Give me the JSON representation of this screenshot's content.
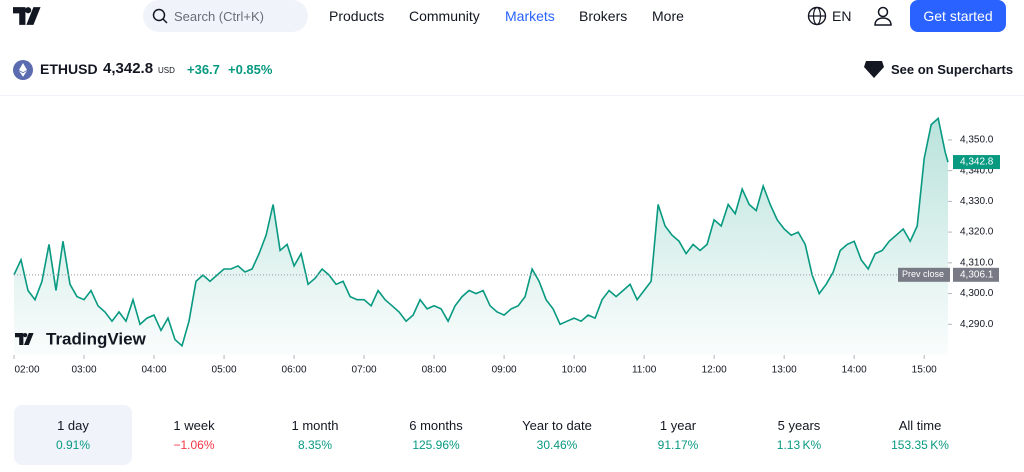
{
  "nav": {
    "search": "Search (Ctrl+K)",
    "links": [
      "Products",
      "Community",
      "Markets",
      "Brokers",
      "More"
    ],
    "active": 2,
    "language": "EN",
    "cta": "Get started"
  },
  "header": {
    "symbol": "ETHUSD",
    "price": "4,342.8",
    "currency": "USD",
    "change": "+36.7",
    "change_percent": "+0.85%",
    "supercharts": "See on Supercharts"
  },
  "chart_data": {
    "type": "area",
    "color": "#089981",
    "watermark": "TradingView",
    "x": [
      2,
      2.1,
      2.2,
      2.3,
      2.4,
      2.5,
      2.6,
      2.7,
      2.8,
      2.9,
      3,
      3.1,
      3.2,
      3.3,
      3.4,
      3.5,
      3.6,
      3.7,
      3.8,
      3.9,
      4,
      4.1,
      4.2,
      4.3,
      4.4,
      4.5,
      4.6,
      4.7,
      4.8,
      4.9,
      5,
      5.1,
      5.2,
      5.3,
      5.4,
      5.5,
      5.6,
      5.7,
      5.8,
      5.9,
      6,
      6.1,
      6.2,
      6.3,
      6.4,
      6.5,
      6.6,
      6.7,
      6.8,
      6.9,
      7,
      7.1,
      7.2,
      7.3,
      7.4,
      7.5,
      7.6,
      7.7,
      7.8,
      7.9,
      8,
      8.1,
      8.2,
      8.3,
      8.4,
      8.5,
      8.6,
      8.7,
      8.8,
      8.9,
      9,
      9.1,
      9.2,
      9.3,
      9.4,
      9.5,
      9.6,
      9.7,
      9.8,
      9.9,
      10,
      10.1,
      10.2,
      10.3,
      10.4,
      10.5,
      10.6,
      10.7,
      10.8,
      10.9,
      11,
      11.1,
      11.2,
      11.3,
      11.4,
      11.5,
      11.6,
      11.7,
      11.8,
      11.9,
      12,
      12.1,
      12.2,
      12.3,
      12.4,
      12.5,
      12.6,
      12.7,
      12.8,
      12.9,
      13,
      13.1,
      13.2,
      13.3,
      13.4,
      13.5,
      13.6,
      13.7,
      13.8,
      13.9,
      14,
      14.1,
      14.2,
      14.3,
      14.4,
      14.5,
      14.6,
      14.7,
      14.8,
      14.9,
      15,
      15.1,
      15.2,
      15.3,
      15.34
    ],
    "values": [
      4306.1,
      4311,
      4301,
      4298,
      4304,
      4316,
      4301,
      4317,
      4303,
      4299,
      4298,
      4301,
      4296,
      4294,
      4291,
      4294,
      4291,
      4298,
      4290,
      4292,
      4293,
      4288,
      4292,
      4285,
      4283,
      4291,
      4304,
      4306,
      4304,
      4306,
      4308,
      4308,
      4309,
      4307,
      4308,
      4313,
      4319,
      4329,
      4314,
      4316,
      4309,
      4313,
      4303,
      4305,
      4308,
      4306,
      4303,
      4304,
      4299,
      4298,
      4298,
      4296,
      4301,
      4298,
      4296,
      4294,
      4291,
      4293,
      4298,
      4295,
      4296,
      4295,
      4291,
      4296,
      4299,
      4301,
      4300,
      4301,
      4296,
      4294,
      4293,
      4295,
      4296,
      4299,
      4308,
      4304,
      4298,
      4295,
      4290,
      4291,
      4292,
      4291,
      4293,
      4292,
      4298,
      4301,
      4299,
      4301,
      4303,
      4298,
      4301,
      4304,
      4329,
      4322,
      4319,
      4317,
      4313,
      4316,
      4314,
      4316,
      4324,
      4322,
      4329,
      4326,
      4334,
      4329,
      4327,
      4335,
      4329,
      4324,
      4321,
      4319,
      4320,
      4316,
      4306,
      4300,
      4303,
      4307,
      4314,
      4316,
      4317,
      4311,
      4308,
      4313,
      4314,
      4317,
      4319,
      4321,
      4317,
      4322,
      4344,
      4355,
      4357,
      4346,
      4342.8
    ],
    "xlim": [
      2,
      15.34
    ],
    "ylim": [
      4280,
      4363
    ],
    "xticks": [
      {
        "value": 2,
        "label": "02:00"
      },
      {
        "value": 3,
        "label": "03:00"
      },
      {
        "value": 4,
        "label": "04:00"
      },
      {
        "value": 5,
        "label": "05:00"
      },
      {
        "value": 6,
        "label": "06:00"
      },
      {
        "value": 7,
        "label": "07:00"
      },
      {
        "value": 8,
        "label": "08:00"
      },
      {
        "value": 9,
        "label": "09:00"
      },
      {
        "value": 10,
        "label": "10:00"
      },
      {
        "value": 11,
        "label": "11:00"
      },
      {
        "value": 12,
        "label": "12:00"
      },
      {
        "value": 13,
        "label": "13:00"
      },
      {
        "value": 14,
        "label": "14:00"
      },
      {
        "value": 15,
        "label": "15:00"
      }
    ],
    "yticks": [
      {
        "value": 4290,
        "label": "4,290.0"
      },
      {
        "value": 4300,
        "label": "4,300.0"
      },
      {
        "value": 4310,
        "label": "4,310.0"
      },
      {
        "value": 4320,
        "label": "4,320.0"
      },
      {
        "value": 4330,
        "label": "4,330.0"
      },
      {
        "value": 4340,
        "label": "4,340.0"
      },
      {
        "value": 4350,
        "label": "4,350.0"
      }
    ],
    "price_label": {
      "value": 4342.8,
      "label": "4,342.8"
    },
    "prev_close": {
      "name": "Prev close",
      "value": 4306.1,
      "label": "4,306.1"
    }
  },
  "periods": [
    {
      "label": "1 day",
      "change": "0.91%",
      "color": "#089981"
    },
    {
      "label": "1 week",
      "change": "−1.06%",
      "color": "#f23645"
    },
    {
      "label": "1 month",
      "change": "8.35%",
      "color": "#089981"
    },
    {
      "label": "6 months",
      "change": "125.96%",
      "color": "#089981"
    },
    {
      "label": "Year to date",
      "change": "30.46%",
      "color": "#089981"
    },
    {
      "label": "1 year",
      "change": "91.17%",
      "color": "#089981"
    },
    {
      "label": "5 years",
      "change": "1.13 K%",
      "color": "#089981"
    },
    {
      "label": "All time",
      "change": "153.35 K%",
      "color": "#089981"
    }
  ],
  "selected_period": 0
}
